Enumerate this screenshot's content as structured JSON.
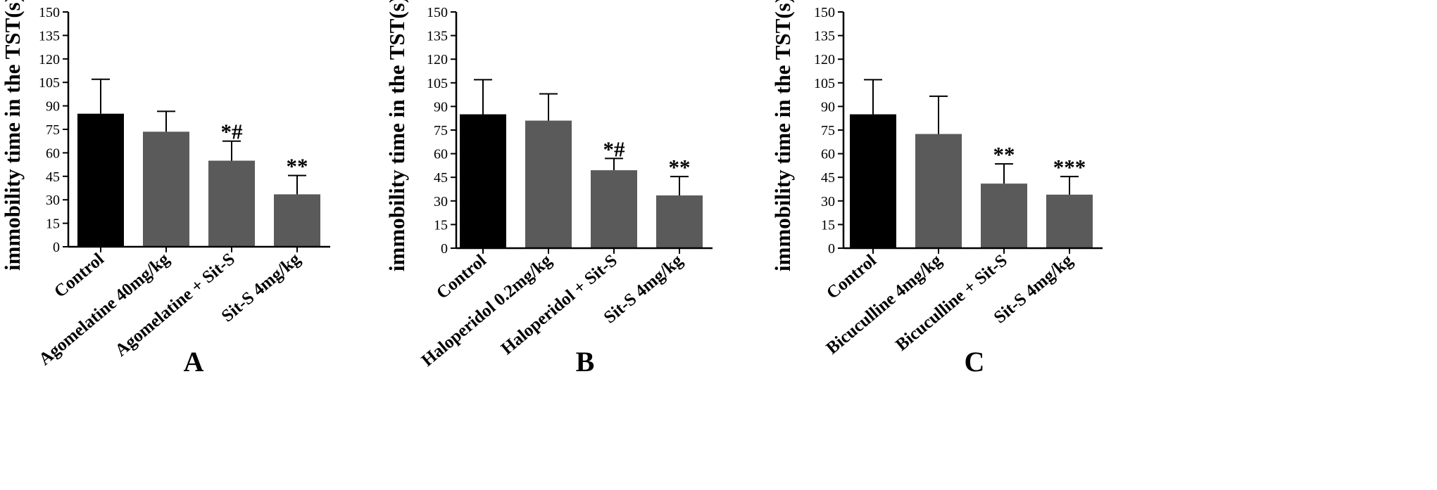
{
  "chart_data": [
    {
      "type": "bar",
      "panel_label": "A",
      "ylabel": "immobility time in the TST(s)",
      "ylim": [
        0,
        150
      ],
      "yticks": [
        0,
        15,
        30,
        45,
        60,
        75,
        90,
        105,
        120,
        135,
        150
      ],
      "grid": false,
      "categories": [
        "Control",
        "Agomelatine 40mg/kg",
        "Agomelatine + Sit-S",
        "Sit-S 4mg/kg"
      ],
      "values": [
        85,
        73.5,
        55,
        33.5
      ],
      "errors": [
        22,
        13,
        12.5,
        12
      ],
      "annotations": [
        "",
        "",
        "*#",
        "**"
      ],
      "colors": [
        "#000000",
        "#5a5a5a",
        "#5a5a5a",
        "#5a5a5a"
      ]
    },
    {
      "type": "bar",
      "panel_label": "B",
      "ylabel": "immobility time in the TST(s)",
      "ylim": [
        0,
        150
      ],
      "yticks": [
        0,
        15,
        30,
        45,
        60,
        75,
        90,
        105,
        120,
        135,
        150
      ],
      "grid": false,
      "categories": [
        "Control",
        "Haloperidol 0.2mg/kg",
        "Haloperidol + Sit-S",
        "Sit-S 4mg/kg"
      ],
      "values": [
        85,
        81,
        49.5,
        33.5
      ],
      "errors": [
        22,
        17,
        7.5,
        12
      ],
      "annotations": [
        "",
        "",
        "*#",
        "**"
      ],
      "colors": [
        "#000000",
        "#5a5a5a",
        "#5a5a5a",
        "#5a5a5a"
      ]
    },
    {
      "type": "bar",
      "panel_label": "C",
      "ylabel": "immobility time in the TST(s)",
      "ylim": [
        0,
        150
      ],
      "yticks": [
        0,
        15,
        30,
        45,
        60,
        75,
        90,
        105,
        120,
        135,
        150
      ],
      "grid": false,
      "categories": [
        "Control",
        "Bicuculline 4mg/kg",
        "Bicuculline + Sit-S",
        "Sit-S 4mg/kg"
      ],
      "values": [
        85,
        72.5,
        41,
        34
      ],
      "errors": [
        22,
        24,
        12.5,
        11.5
      ],
      "annotations": [
        "",
        "",
        "**",
        "***"
      ],
      "colors": [
        "#000000",
        "#5a5a5a",
        "#5a5a5a",
        "#5a5a5a"
      ]
    }
  ]
}
